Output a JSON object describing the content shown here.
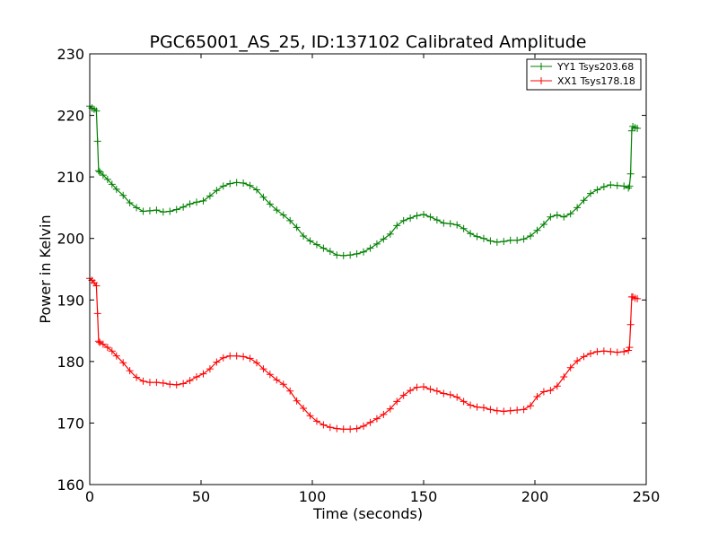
{
  "chart_data": {
    "type": "line",
    "title": "PGC65001_AS_25, ID:137102 Calibrated Amplitude",
    "xlabel": "Time (seconds)",
    "ylabel": "Power in Kelvin",
    "xlim": [
      0,
      250
    ],
    "ylim": [
      160,
      230
    ],
    "xticks": [
      0,
      50,
      100,
      150,
      200,
      250
    ],
    "yticks": [
      160,
      170,
      180,
      190,
      200,
      210,
      220,
      230
    ],
    "legend_position": "top-right",
    "series": [
      {
        "name": "YY1 Tsys203.68",
        "color": "#008000",
        "x": [
          0,
          1,
          2,
          3,
          3.5,
          4,
          4.5,
          6,
          8,
          10,
          12,
          15,
          18,
          21,
          24,
          27,
          30,
          33,
          36,
          39,
          42,
          45,
          48,
          51,
          54,
          57,
          60,
          63,
          66,
          69,
          72,
          75,
          78,
          81,
          84,
          87,
          90,
          93,
          96,
          99,
          102,
          105,
          108,
          111,
          114,
          117,
          120,
          123,
          126,
          129,
          132,
          135,
          138,
          141,
          144,
          147,
          150,
          153,
          156,
          159,
          162,
          165,
          168,
          171,
          174,
          177,
          180,
          183,
          186,
          189,
          192,
          195,
          198,
          201,
          204,
          207,
          210,
          213,
          216,
          219,
          222,
          225,
          228,
          231,
          234,
          237,
          240,
          242,
          242.5,
          243,
          243.5,
          244,
          245,
          246
        ],
        "y": [
          221.5,
          221.2,
          221.0,
          220.7,
          215.8,
          211.0,
          210.8,
          210.3,
          209.6,
          208.8,
          208.0,
          207.0,
          205.8,
          205.0,
          204.4,
          204.5,
          204.6,
          204.3,
          204.4,
          204.7,
          205.1,
          205.6,
          205.9,
          206.1,
          206.9,
          207.8,
          208.5,
          208.9,
          209.1,
          209.0,
          208.6,
          207.9,
          206.7,
          205.6,
          204.6,
          203.8,
          202.9,
          201.8,
          200.4,
          199.6,
          199.0,
          198.4,
          197.9,
          197.3,
          197.2,
          197.3,
          197.5,
          197.8,
          198.4,
          199.1,
          199.9,
          200.7,
          202.1,
          202.9,
          203.3,
          203.7,
          203.9,
          203.5,
          203.0,
          202.5,
          202.4,
          202.2,
          201.6,
          200.8,
          200.3,
          200.0,
          199.6,
          199.4,
          199.5,
          199.7,
          199.7,
          199.9,
          200.4,
          201.3,
          202.3,
          203.5,
          203.8,
          203.5,
          204.0,
          205.0,
          206.2,
          207.3,
          207.9,
          208.4,
          208.7,
          208.6,
          208.5,
          208.2,
          208.5,
          210.5,
          217.5,
          218.2,
          218.0,
          217.9
        ]
      },
      {
        "name": "XX1 Tsys178.18",
        "color": "#ff0000",
        "x": [
          0,
          1,
          2,
          3,
          3.5,
          4,
          4.5,
          6,
          8,
          10,
          12,
          15,
          18,
          21,
          24,
          27,
          30,
          33,
          36,
          39,
          42,
          45,
          48,
          51,
          54,
          57,
          60,
          63,
          66,
          69,
          72,
          75,
          78,
          81,
          84,
          87,
          90,
          93,
          96,
          99,
          102,
          105,
          108,
          111,
          114,
          117,
          120,
          123,
          126,
          129,
          132,
          135,
          138,
          141,
          144,
          147,
          150,
          153,
          156,
          159,
          162,
          165,
          168,
          171,
          174,
          177,
          180,
          183,
          186,
          189,
          192,
          195,
          198,
          201,
          204,
          207,
          210,
          213,
          216,
          219,
          222,
          225,
          228,
          231,
          234,
          237,
          240,
          242,
          242.5,
          243,
          243.5,
          244,
          245,
          246
        ],
        "y": [
          193.5,
          193.2,
          192.8,
          192.3,
          187.8,
          183.3,
          183.1,
          182.8,
          182.3,
          181.7,
          180.9,
          179.8,
          178.5,
          177.4,
          176.8,
          176.6,
          176.6,
          176.5,
          176.3,
          176.2,
          176.4,
          176.9,
          177.5,
          178.0,
          178.8,
          179.9,
          180.6,
          180.9,
          180.9,
          180.8,
          180.5,
          179.8,
          178.8,
          177.9,
          177.0,
          176.3,
          175.2,
          173.6,
          172.4,
          171.2,
          170.3,
          169.7,
          169.3,
          169.1,
          169.0,
          169.0,
          169.1,
          169.5,
          170.1,
          170.7,
          171.4,
          172.3,
          173.5,
          174.5,
          175.3,
          175.8,
          175.9,
          175.5,
          175.2,
          174.8,
          174.6,
          174.2,
          173.5,
          172.9,
          172.6,
          172.5,
          172.2,
          172.0,
          171.9,
          172.0,
          172.1,
          172.2,
          172.8,
          174.3,
          175.1,
          175.3,
          176.0,
          177.5,
          179.0,
          180.1,
          180.8,
          181.3,
          181.6,
          181.7,
          181.6,
          181.5,
          181.6,
          181.8,
          182.3,
          186.0,
          190.5,
          190.5,
          190.3,
          190.2
        ]
      }
    ]
  }
}
